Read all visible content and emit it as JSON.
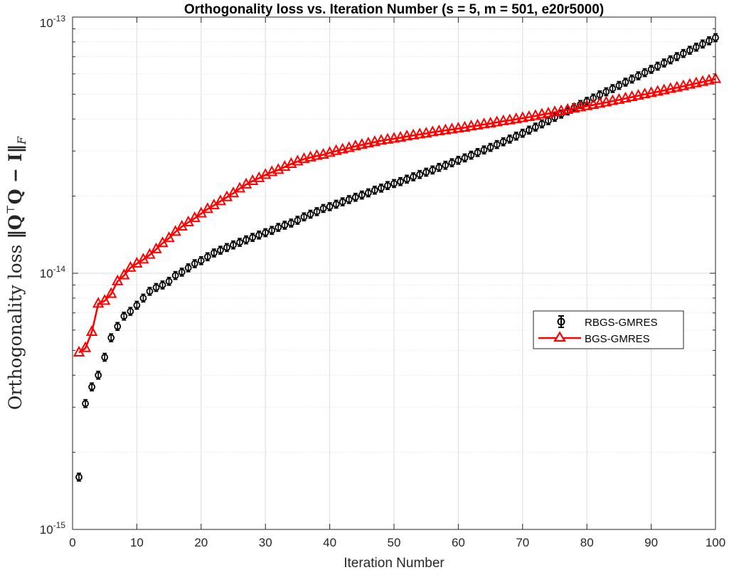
{
  "chart_data": {
    "type": "line",
    "title": "Orthogonality loss vs. Iteration Number (s = 5, m = 501, e20r5000)",
    "xlabel": "Iteration Number",
    "ylabel": {
      "text": "Orthogonality loss ",
      "math": "‖Q",
      "sup": "⊤",
      "math2": "Q − I‖",
      "sub": "F"
    },
    "xlim": [
      0,
      100
    ],
    "ylim": [
      1e-15,
      1e-13
    ],
    "yscale": "log",
    "grid": true,
    "minor_grid": true,
    "legend_position": "right",
    "x_ticks": [
      "0",
      "10",
      "20",
      "30",
      "40",
      "50",
      "60",
      "70",
      "80",
      "90",
      "100"
    ],
    "y_ticks": [
      {
        "base": "10",
        "exp": "-15"
      },
      {
        "base": "10",
        "exp": "-14"
      },
      {
        "base": "10",
        "exp": "-13"
      }
    ],
    "series": [
      {
        "name": "RBGS-GMRES",
        "color": "#000000",
        "marker": "circle",
        "line": "none",
        "error_bars": true,
        "x": [
          1,
          2,
          3,
          4,
          5,
          6,
          7,
          8,
          9,
          10,
          11,
          12,
          13,
          14,
          15,
          16,
          17,
          18,
          19,
          20,
          21,
          22,
          23,
          24,
          25,
          26,
          27,
          28,
          29,
          30,
          31,
          32,
          33,
          34,
          35,
          36,
          37,
          38,
          39,
          40,
          41,
          42,
          43,
          44,
          45,
          46,
          47,
          48,
          49,
          50,
          51,
          52,
          53,
          54,
          55,
          56,
          57,
          58,
          59,
          60,
          61,
          62,
          63,
          64,
          65,
          66,
          67,
          68,
          69,
          70,
          71,
          72,
          73,
          74,
          75,
          76,
          77,
          78,
          79,
          80,
          81,
          82,
          83,
          84,
          85,
          86,
          87,
          88,
          89,
          90,
          91,
          92,
          93,
          94,
          95,
          96,
          97,
          98,
          99,
          100
        ],
        "y": [
          1.6e-15,
          3.1e-15,
          3.6e-15,
          4e-15,
          4.7e-15,
          5.6e-15,
          6.2e-15,
          6.8e-15,
          7.1e-15,
          7.5e-15,
          8e-15,
          8.5e-15,
          8.8e-15,
          9e-15,
          9.3e-15,
          9.8e-15,
          1.01e-14,
          1.05e-14,
          1.09e-14,
          1.12e-14,
          1.16e-14,
          1.2e-14,
          1.23e-14,
          1.26e-14,
          1.29e-14,
          1.32e-14,
          1.35e-14,
          1.38e-14,
          1.41e-14,
          1.44e-14,
          1.47e-14,
          1.51e-14,
          1.54e-14,
          1.57e-14,
          1.61e-14,
          1.66e-14,
          1.7e-14,
          1.74e-14,
          1.79e-14,
          1.82e-14,
          1.86e-14,
          1.9e-14,
          1.94e-14,
          1.98e-14,
          2.02e-14,
          2.06e-14,
          2.11e-14,
          2.15e-14,
          2.2e-14,
          2.24e-14,
          2.28e-14,
          2.33e-14,
          2.38e-14,
          2.43e-14,
          2.48e-14,
          2.53e-14,
          2.59e-14,
          2.64e-14,
          2.7e-14,
          2.76e-14,
          2.82e-14,
          2.89e-14,
          2.96e-14,
          3.03e-14,
          3.1e-14,
          3.18e-14,
          3.26e-14,
          3.34e-14,
          3.43e-14,
          3.52e-14,
          3.62e-14,
          3.72e-14,
          3.83e-14,
          3.94e-14,
          4.06e-14,
          4.18e-14,
          4.3e-14,
          4.43e-14,
          4.56e-14,
          4.69e-14,
          4.83e-14,
          4.97e-14,
          5.11e-14,
          5.26e-14,
          5.41e-14,
          5.57e-14,
          5.73e-14,
          5.9e-14,
          6.07e-14,
          6.25e-14,
          6.43e-14,
          6.62e-14,
          6.81e-14,
          7.01e-14,
          7.21e-14,
          7.42e-14,
          7.63e-14,
          7.85e-14,
          8.08e-14,
          8.31e-14
        ]
      },
      {
        "name": "BGS-GMRES",
        "color": "#ff0000",
        "marker": "triangle",
        "line": "solid",
        "x": [
          1,
          2,
          3,
          4,
          5,
          6,
          7,
          8,
          9,
          10,
          11,
          12,
          13,
          14,
          15,
          16,
          17,
          18,
          19,
          20,
          21,
          22,
          23,
          24,
          25,
          26,
          27,
          28,
          29,
          30,
          31,
          32,
          33,
          34,
          35,
          36,
          37,
          38,
          39,
          40,
          41,
          42,
          43,
          44,
          45,
          46,
          47,
          48,
          49,
          50,
          51,
          52,
          53,
          54,
          55,
          56,
          57,
          58,
          59,
          60,
          61,
          62,
          63,
          64,
          65,
          66,
          67,
          68,
          69,
          70,
          71,
          72,
          73,
          74,
          75,
          76,
          77,
          78,
          79,
          80,
          81,
          82,
          83,
          84,
          85,
          86,
          87,
          88,
          89,
          90,
          91,
          92,
          93,
          94,
          95,
          96,
          97,
          98,
          99,
          100
        ],
        "y": [
          4.9e-15,
          5.1e-15,
          5.9e-15,
          7.6e-15,
          7.8e-15,
          8.3e-15,
          9.3e-15,
          9.8e-15,
          1.05e-14,
          1.09e-14,
          1.13e-14,
          1.18e-14,
          1.24e-14,
          1.31e-14,
          1.37e-14,
          1.45e-14,
          1.52e-14,
          1.58e-14,
          1.64e-14,
          1.71e-14,
          1.78e-14,
          1.84e-14,
          1.91e-14,
          1.98e-14,
          2.05e-14,
          2.14e-14,
          2.22e-14,
          2.29e-14,
          2.35e-14,
          2.42e-14,
          2.48e-14,
          2.53e-14,
          2.6e-14,
          2.67e-14,
          2.73e-14,
          2.79e-14,
          2.83e-14,
          2.87e-14,
          2.9e-14,
          2.95e-14,
          3e-14,
          3.04e-14,
          3.08e-14,
          3.13e-14,
          3.17e-14,
          3.21e-14,
          3.25e-14,
          3.29e-14,
          3.32e-14,
          3.35e-14,
          3.38e-14,
          3.42e-14,
          3.45e-14,
          3.48e-14,
          3.51e-14,
          3.55e-14,
          3.58e-14,
          3.61e-14,
          3.64e-14,
          3.67e-14,
          3.7e-14,
          3.74e-14,
          3.77e-14,
          3.81e-14,
          3.84e-14,
          3.88e-14,
          3.92e-14,
          3.95e-14,
          3.99e-14,
          4.03e-14,
          4.07e-14,
          4.11e-14,
          4.16e-14,
          4.2e-14,
          4.25e-14,
          4.29e-14,
          4.34e-14,
          4.39e-14,
          4.44e-14,
          4.49e-14,
          4.54e-14,
          4.59e-14,
          4.64e-14,
          4.7e-14,
          4.75e-14,
          4.81e-14,
          4.87e-14,
          4.93e-14,
          4.99e-14,
          5.05e-14,
          5.11e-14,
          5.17e-14,
          5.24e-14,
          5.3e-14,
          5.37e-14,
          5.44e-14,
          5.51e-14,
          5.58e-14,
          5.65e-14,
          5.73e-14
        ]
      }
    ]
  }
}
